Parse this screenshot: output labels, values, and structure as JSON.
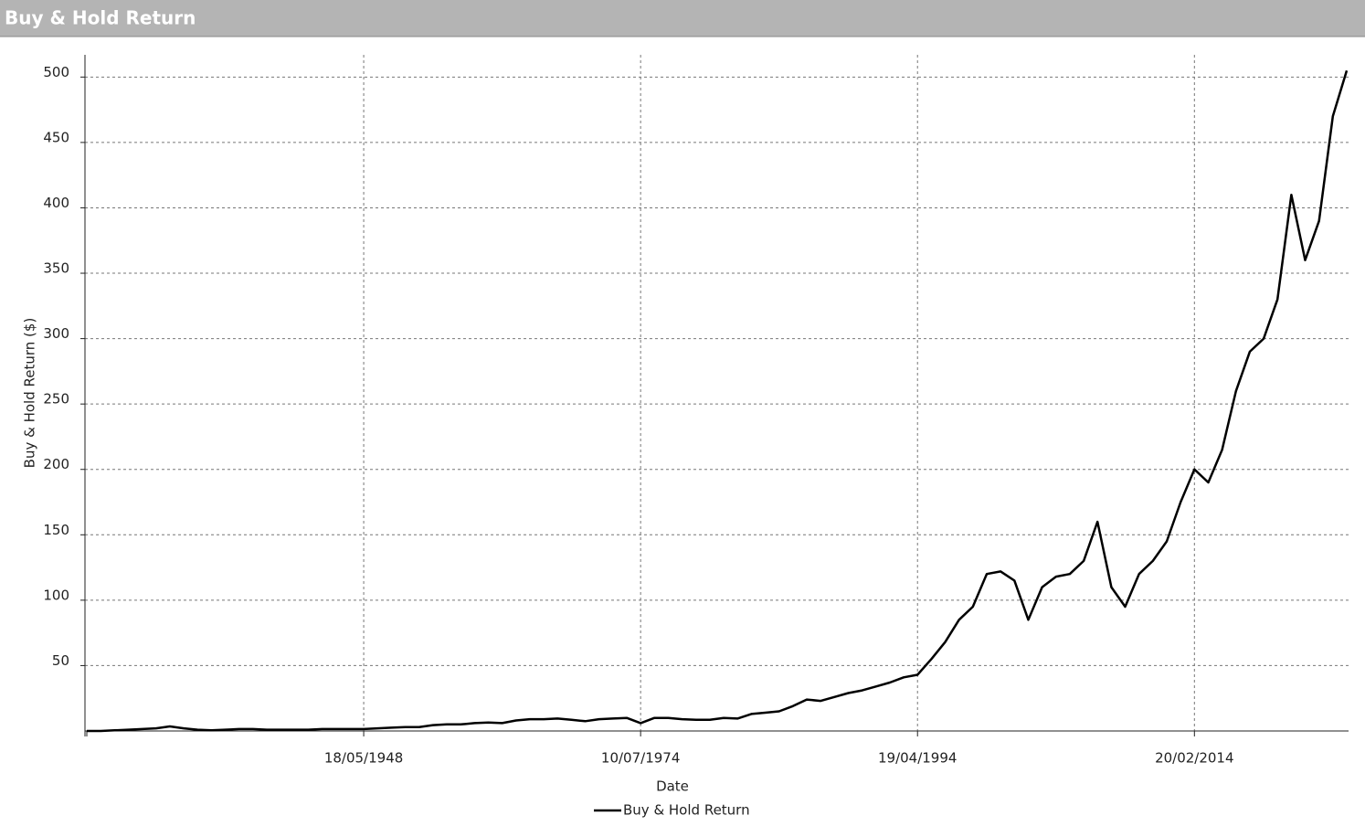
{
  "chart_data": {
    "type": "line",
    "title": "Buy & Hold Return",
    "x_label": "Date",
    "y_label": "Buy & Hold Return ($)",
    "categories": [
      null,
      null,
      null,
      null,
      null,
      null,
      null,
      null,
      null,
      null,
      null,
      null,
      null,
      null,
      null,
      null,
      null,
      null,
      null,
      null,
      "18/05/1948",
      null,
      null,
      null,
      null,
      null,
      null,
      null,
      null,
      null,
      null,
      null,
      null,
      null,
      null,
      null,
      null,
      null,
      null,
      null,
      "10/07/1974",
      null,
      null,
      null,
      null,
      null,
      null,
      null,
      null,
      null,
      null,
      null,
      null,
      null,
      null,
      null,
      null,
      null,
      null,
      null,
      "19/04/1994",
      null,
      null,
      null,
      null,
      null,
      null,
      null,
      null,
      null,
      null,
      null,
      null,
      null,
      null,
      null,
      null,
      null,
      null,
      null,
      "20/02/2014",
      null,
      null,
      null,
      null,
      null,
      null,
      null,
      null,
      null,
      null,
      null
    ],
    "series": [
      {
        "name": "Buy & Hold Return",
        "color": "#000000",
        "values": [
          0,
          0,
          0.5,
          1,
          1.5,
          2,
          3.5,
          2,
          1,
          0.5,
          1,
          1.5,
          1.5,
          1,
          1,
          1,
          1,
          1.5,
          1.5,
          1.5,
          1.5,
          2,
          2.5,
          3,
          3,
          4.5,
          5,
          5,
          6,
          6.5,
          6,
          8,
          9,
          9,
          9.5,
          8.5,
          7.5,
          9,
          9.5,
          10,
          6,
          10,
          10,
          9,
          8.5,
          8.5,
          10,
          9.5,
          13,
          14,
          15,
          19,
          24,
          23,
          26,
          29,
          31,
          34,
          37,
          41,
          43,
          55,
          68,
          85,
          95,
          120,
          122,
          115,
          85,
          110,
          118,
          120,
          130,
          160,
          110,
          95,
          120,
          130,
          145,
          175,
          200,
          190,
          215,
          260,
          290,
          300,
          330,
          410,
          360,
          390,
          470,
          505
        ]
      }
    ],
    "ylim": [
      0,
      517
    ],
    "yticks": [
      50,
      100,
      150,
      200,
      250,
      300,
      350,
      400,
      450,
      500
    ],
    "grid": true
  }
}
